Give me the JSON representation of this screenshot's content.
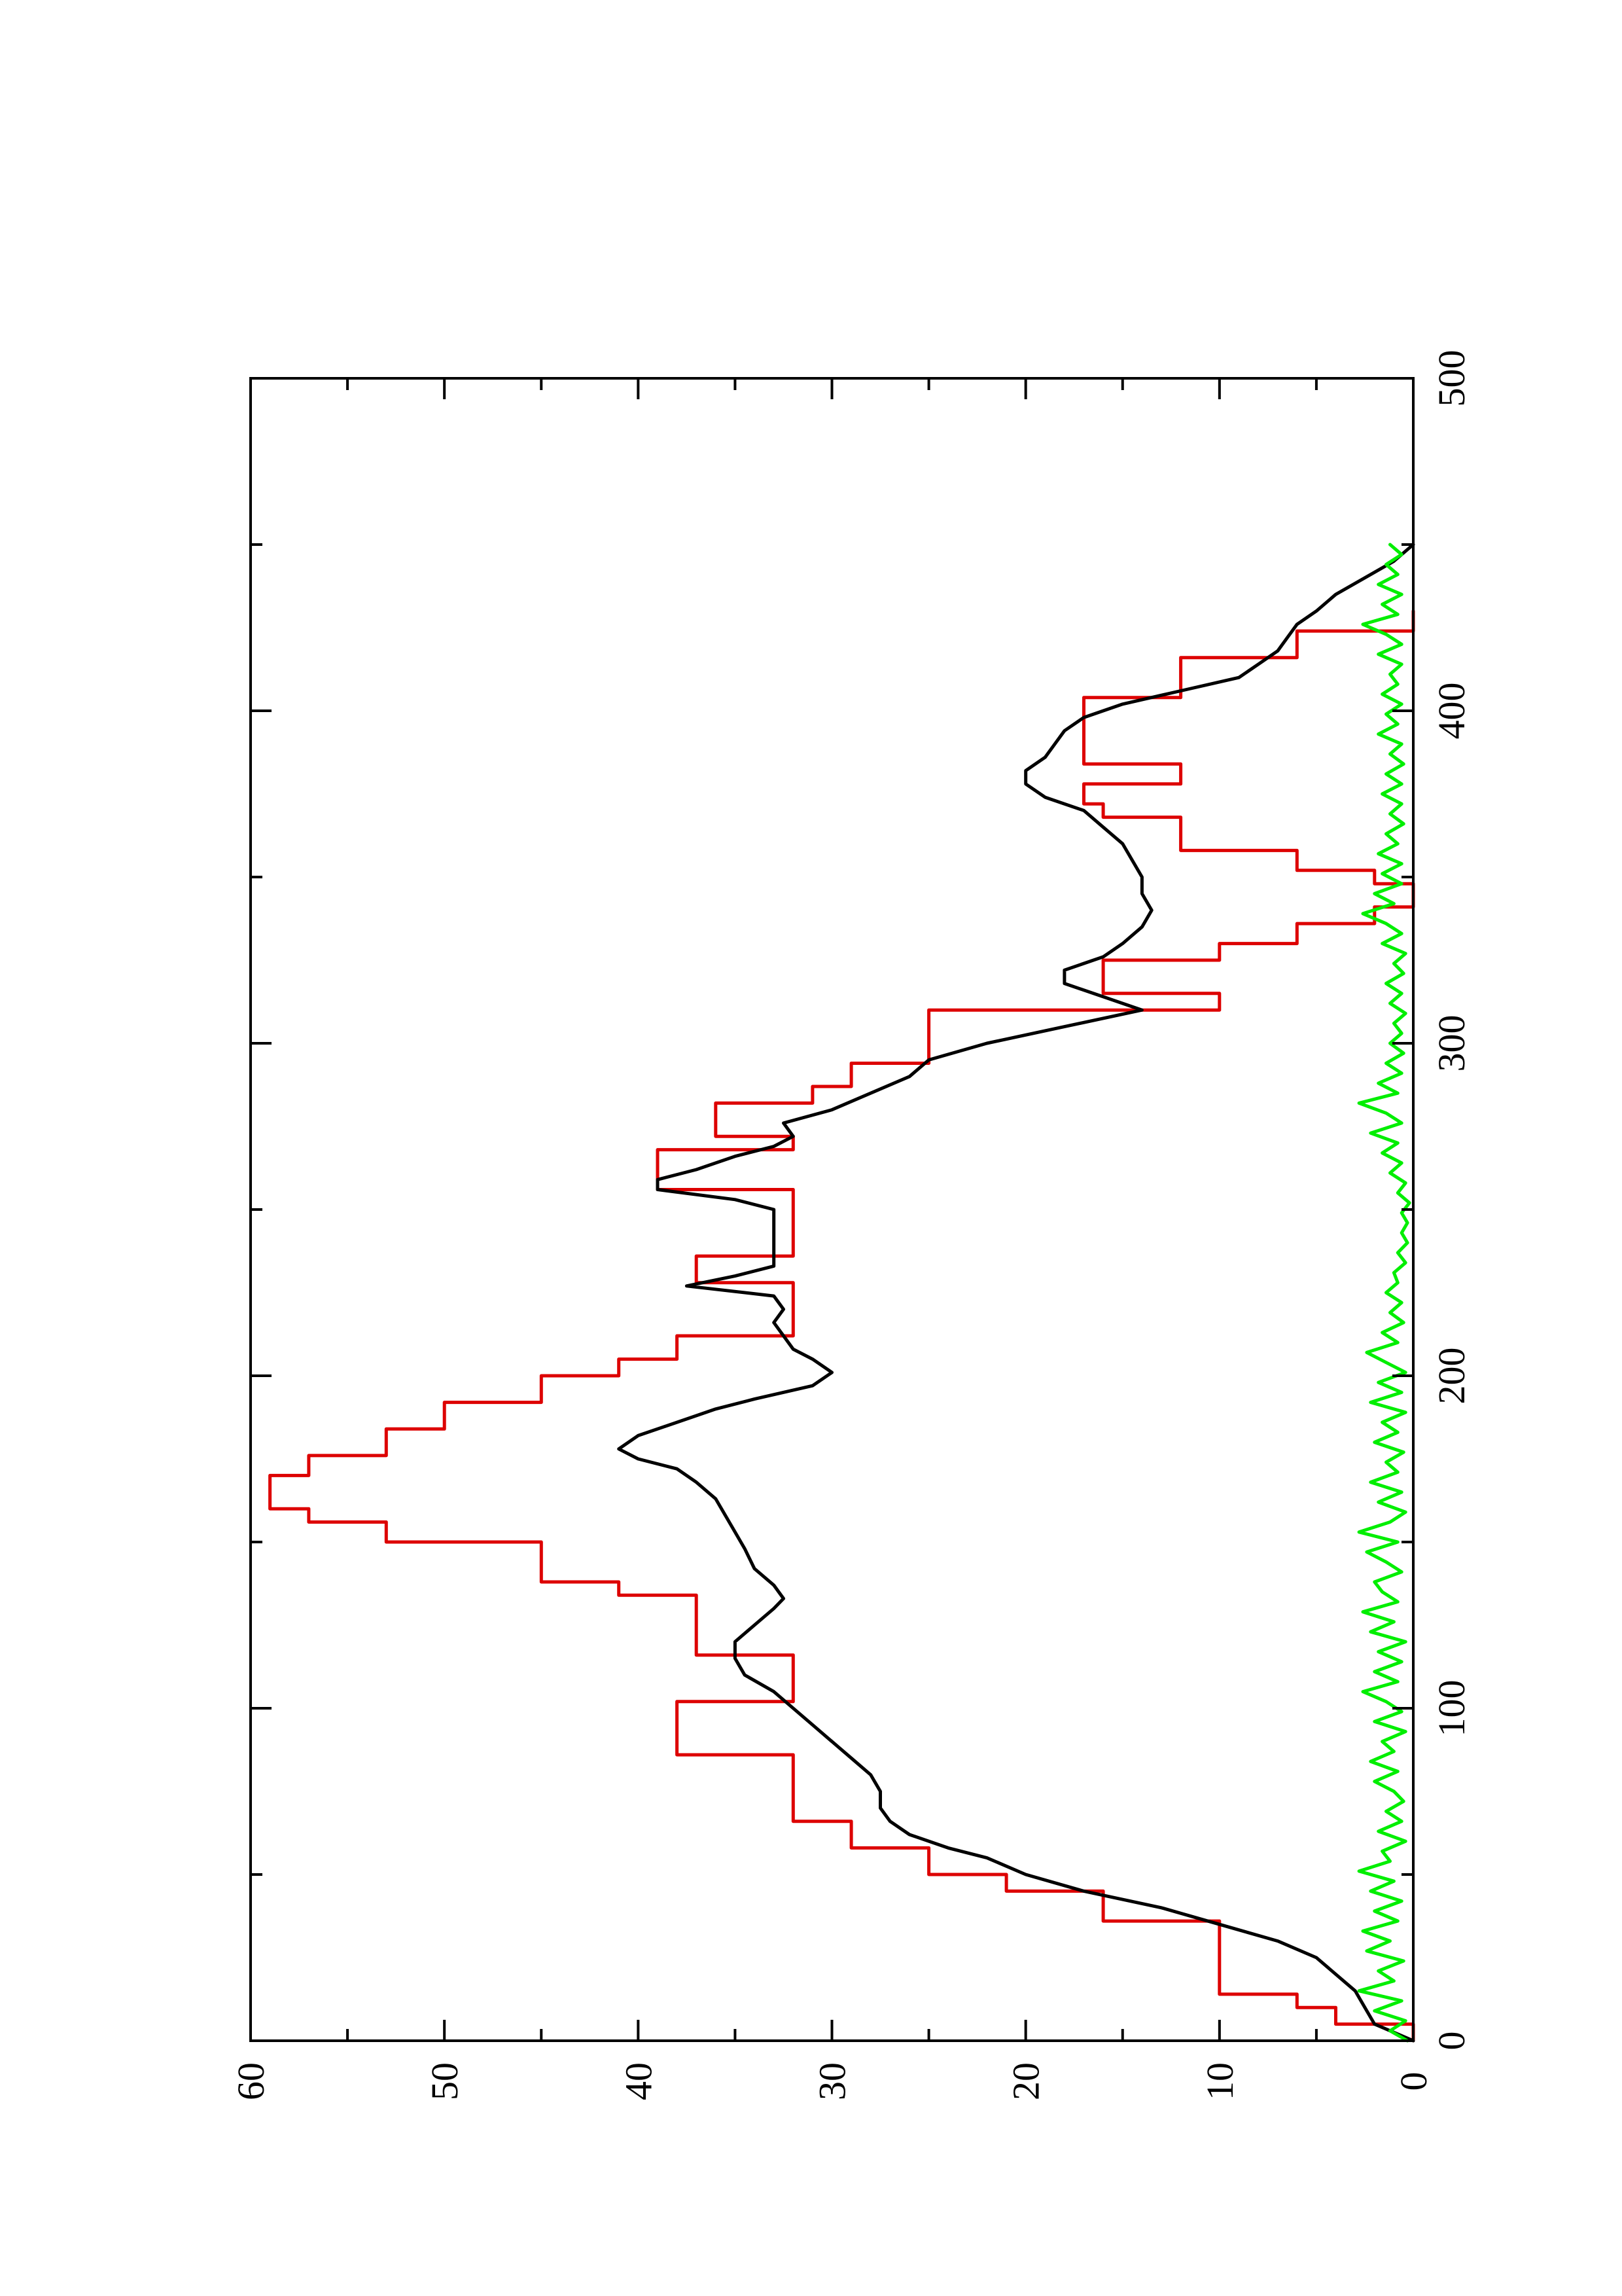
{
  "chart_data": {
    "type": "line",
    "orientation": "rotated-90-ccw",
    "title": "",
    "xlabel": "",
    "ylabel": "",
    "xlim": [
      0,
      500
    ],
    "ylim": [
      0,
      60
    ],
    "x_ticks": [
      0,
      100,
      200,
      300,
      400,
      500
    ],
    "x_minor_ticks": [
      50,
      150,
      250,
      350,
      450
    ],
    "y_ticks": [
      0,
      10,
      20,
      30,
      40,
      50,
      60
    ],
    "y_minor_ticks": [
      5,
      15,
      25,
      35,
      45,
      55
    ],
    "grid": false,
    "legend": "none",
    "series": [
      {
        "color": "#dd0000",
        "style": "step",
        "points": [
          [
            0,
            0
          ],
          [
            5,
            4
          ],
          [
            10,
            6
          ],
          [
            14,
            10
          ],
          [
            33,
            10
          ],
          [
            36,
            16
          ],
          [
            45,
            21
          ],
          [
            50,
            25
          ],
          [
            58,
            29
          ],
          [
            66,
            32
          ],
          [
            82,
            32
          ],
          [
            86,
            38
          ],
          [
            98,
            38
          ],
          [
            102,
            32
          ],
          [
            112,
            32
          ],
          [
            116,
            37
          ],
          [
            128,
            37
          ],
          [
            134,
            41
          ],
          [
            138,
            45
          ],
          [
            150,
            53
          ],
          [
            156,
            57
          ],
          [
            160,
            59
          ],
          [
            166,
            59
          ],
          [
            170,
            57
          ],
          [
            176,
            53
          ],
          [
            184,
            50
          ],
          [
            192,
            45
          ],
          [
            200,
            41
          ],
          [
            205,
            38
          ],
          [
            212,
            32
          ],
          [
            224,
            32
          ],
          [
            228,
            37
          ],
          [
            236,
            32
          ],
          [
            252,
            32
          ],
          [
            256,
            39
          ],
          [
            268,
            32
          ],
          [
            270,
            32
          ],
          [
            272,
            36
          ],
          [
            279,
            36
          ],
          [
            282,
            31
          ],
          [
            287,
            29
          ],
          [
            294,
            25
          ],
          [
            298,
            25
          ],
          [
            310,
            10
          ],
          [
            315,
            16
          ],
          [
            320,
            16
          ],
          [
            325,
            10
          ],
          [
            330,
            6
          ],
          [
            336,
            2
          ],
          [
            341,
            0
          ],
          [
            345,
            0
          ],
          [
            348,
            2
          ],
          [
            352,
            6
          ],
          [
            358,
            12
          ],
          [
            362,
            12
          ],
          [
            368,
            16
          ],
          [
            372,
            17
          ],
          [
            378,
            12
          ],
          [
            384,
            17
          ],
          [
            400,
            17
          ],
          [
            404,
            12
          ],
          [
            408,
            12
          ],
          [
            416,
            6
          ],
          [
            420,
            6
          ],
          [
            424,
            0
          ],
          [
            430,
            0
          ]
        ]
      },
      {
        "color": "#000000",
        "style": "line",
        "points": [
          [
            0,
            0
          ],
          [
            5,
            2
          ],
          [
            10,
            2.5
          ],
          [
            15,
            3
          ],
          [
            20,
            4
          ],
          [
            25,
            5
          ],
          [
            30,
            7
          ],
          [
            35,
            10
          ],
          [
            40,
            13
          ],
          [
            45,
            17
          ],
          [
            50,
            20
          ],
          [
            55,
            22
          ],
          [
            58,
            24
          ],
          [
            62,
            26
          ],
          [
            66,
            27
          ],
          [
            70,
            27.5
          ],
          [
            75,
            27.5
          ],
          [
            80,
            28
          ],
          [
            85,
            29
          ],
          [
            90,
            30
          ],
          [
            95,
            31
          ],
          [
            100,
            32
          ],
          [
            105,
            33
          ],
          [
            110,
            34.5
          ],
          [
            115,
            35
          ],
          [
            120,
            35
          ],
          [
            125,
            34
          ],
          [
            130,
            33
          ],
          [
            133,
            32.5
          ],
          [
            137,
            33
          ],
          [
            142,
            34
          ],
          [
            148,
            34.5
          ],
          [
            153,
            35
          ],
          [
            158,
            35.5
          ],
          [
            163,
            36
          ],
          [
            168,
            37
          ],
          [
            172,
            38
          ],
          [
            175,
            40
          ],
          [
            178,
            41
          ],
          [
            182,
            40
          ],
          [
            186,
            38
          ],
          [
            190,
            36
          ],
          [
            193,
            34
          ],
          [
            197,
            31
          ],
          [
            201,
            30
          ],
          [
            205,
            31
          ],
          [
            208,
            32
          ],
          [
            212,
            32.5
          ],
          [
            216,
            33
          ],
          [
            220,
            32.5
          ],
          [
            224,
            33
          ],
          [
            227,
            37.5
          ],
          [
            230,
            35
          ],
          [
            233,
            33
          ],
          [
            238,
            33
          ],
          [
            245,
            33
          ],
          [
            250,
            33
          ],
          [
            253,
            35
          ],
          [
            256,
            39
          ],
          [
            259,
            39
          ],
          [
            262,
            37
          ],
          [
            266,
            35
          ],
          [
            269,
            33
          ],
          [
            272,
            32
          ],
          [
            276,
            32.5
          ],
          [
            280,
            30
          ],
          [
            285,
            28
          ],
          [
            290,
            26
          ],
          [
            295,
            25
          ],
          [
            300,
            22
          ],
          [
            305,
            18
          ],
          [
            310,
            14
          ],
          [
            314,
            16
          ],
          [
            318,
            18
          ],
          [
            322,
            18
          ],
          [
            326,
            16
          ],
          [
            330,
            15
          ],
          [
            335,
            14
          ],
          [
            340,
            13.5
          ],
          [
            345,
            14
          ],
          [
            350,
            14
          ],
          [
            355,
            14.5
          ],
          [
            360,
            15
          ],
          [
            365,
            16
          ],
          [
            370,
            17
          ],
          [
            374,
            19
          ],
          [
            378,
            20
          ],
          [
            382,
            20
          ],
          [
            386,
            19
          ],
          [
            390,
            18.5
          ],
          [
            394,
            18
          ],
          [
            398,
            17
          ],
          [
            402,
            15
          ],
          [
            406,
            12
          ],
          [
            410,
            9
          ],
          [
            414,
            8
          ],
          [
            418,
            7
          ],
          [
            422,
            6.5
          ],
          [
            426,
            6
          ],
          [
            430,
            5
          ],
          [
            435,
            4
          ],
          [
            440,
            2.5
          ],
          [
            445,
            1
          ],
          [
            450,
            0
          ]
        ]
      },
      {
        "color": "#00ee00",
        "style": "line",
        "points": [
          [
            0,
            0.3
          ],
          [
            3,
            1.2
          ],
          [
            6,
            0.4
          ],
          [
            9,
            2.0
          ],
          [
            12,
            0.6
          ],
          [
            15,
            2.8
          ],
          [
            18,
            1.0
          ],
          [
            21,
            1.8
          ],
          [
            24,
            0.5
          ],
          [
            27,
            2.4
          ],
          [
            30,
            1.2
          ],
          [
            33,
            2.6
          ],
          [
            36,
            0.8
          ],
          [
            39,
            2.0
          ],
          [
            42,
            0.6
          ],
          [
            45,
            2.2
          ],
          [
            48,
            1.0
          ],
          [
            51,
            2.8
          ],
          [
            54,
            1.2
          ],
          [
            57,
            1.6
          ],
          [
            60,
            0.4
          ],
          [
            63,
            1.8
          ],
          [
            66,
            0.6
          ],
          [
            69,
            1.4
          ],
          [
            72,
            0.5
          ],
          [
            75,
            1.0
          ],
          [
            78,
            2.0
          ],
          [
            81,
            0.8
          ],
          [
            84,
            2.2
          ],
          [
            87,
            1.0
          ],
          [
            90,
            1.6
          ],
          [
            93,
            0.4
          ],
          [
            96,
            2.0
          ],
          [
            99,
            0.6
          ],
          [
            102,
            1.4
          ],
          [
            105,
            2.6
          ],
          [
            108,
            0.8
          ],
          [
            111,
            2.0
          ],
          [
            114,
            0.6
          ],
          [
            117,
            1.8
          ],
          [
            120,
            0.4
          ],
          [
            123,
            2.2
          ],
          [
            126,
            1.0
          ],
          [
            129,
            2.6
          ],
          [
            132,
            0.8
          ],
          [
            135,
            1.6
          ],
          [
            138,
            2.0
          ],
          [
            141,
            0.6
          ],
          [
            144,
            1.4
          ],
          [
            147,
            2.4
          ],
          [
            150,
            0.8
          ],
          [
            153,
            2.8
          ],
          [
            156,
            1.2
          ],
          [
            159,
            0.4
          ],
          [
            162,
            1.8
          ],
          [
            165,
            0.6
          ],
          [
            168,
            2.2
          ],
          [
            171,
            0.8
          ],
          [
            174,
            1.4
          ],
          [
            177,
            0.5
          ],
          [
            180,
            2.0
          ],
          [
            183,
            0.8
          ],
          [
            186,
            1.6
          ],
          [
            189,
            0.4
          ],
          [
            192,
            2.2
          ],
          [
            195,
            0.6
          ],
          [
            198,
            1.8
          ],
          [
            201,
            0.4
          ],
          [
            204,
            1.4
          ],
          [
            207,
            2.4
          ],
          [
            210,
            0.8
          ],
          [
            213,
            1.6
          ],
          [
            216,
            0.5
          ],
          [
            219,
            1.2
          ],
          [
            222,
            0.6
          ],
          [
            225,
            1.4
          ],
          [
            228,
            0.8
          ],
          [
            231,
            1.0
          ],
          [
            234,
            0.4
          ],
          [
            237,
            0.8
          ],
          [
            240,
            0.3
          ],
          [
            243,
            0.6
          ],
          [
            246,
            0.3
          ],
          [
            249,
            0.6
          ],
          [
            252,
            0.2
          ],
          [
            255,
            0.8
          ],
          [
            258,
            0.4
          ],
          [
            261,
            1.2
          ],
          [
            264,
            0.6
          ],
          [
            267,
            1.6
          ],
          [
            270,
            0.8
          ],
          [
            273,
            2.2
          ],
          [
            276,
            0.6
          ],
          [
            279,
            1.4
          ],
          [
            282,
            2.8
          ],
          [
            285,
            0.8
          ],
          [
            288,
            1.8
          ],
          [
            291,
            0.6
          ],
          [
            294,
            1.4
          ],
          [
            297,
            0.5
          ],
          [
            300,
            1.2
          ],
          [
            303,
            0.6
          ],
          [
            306,
            1.0
          ],
          [
            309,
            0.4
          ],
          [
            312,
            1.2
          ],
          [
            315,
            0.6
          ],
          [
            318,
            1.4
          ],
          [
            321,
            0.5
          ],
          [
            324,
            1.0
          ],
          [
            327,
            0.4
          ],
          [
            330,
            1.6
          ],
          [
            333,
            0.6
          ],
          [
            336,
            1.4
          ],
          [
            339,
            2.6
          ],
          [
            342,
            1.0
          ],
          [
            345,
            2.0
          ],
          [
            348,
            0.6
          ],
          [
            351,
            1.6
          ],
          [
            354,
            0.6
          ],
          [
            357,
            1.8
          ],
          [
            360,
            0.8
          ],
          [
            363,
            1.4
          ],
          [
            366,
            0.5
          ],
          [
            369,
            1.2
          ],
          [
            372,
            0.6
          ],
          [
            375,
            1.6
          ],
          [
            378,
            0.6
          ],
          [
            381,
            1.4
          ],
          [
            384,
            0.5
          ],
          [
            387,
            1.2
          ],
          [
            390,
            0.6
          ],
          [
            393,
            1.8
          ],
          [
            396,
            0.8
          ],
          [
            399,
            1.4
          ],
          [
            402,
            0.6
          ],
          [
            405,
            1.6
          ],
          [
            408,
            0.8
          ],
          [
            411,
            1.2
          ],
          [
            414,
            0.6
          ],
          [
            417,
            1.8
          ],
          [
            420,
            0.6
          ],
          [
            423,
            1.4
          ],
          [
            426,
            2.6
          ],
          [
            429,
            0.8
          ],
          [
            432,
            1.6
          ],
          [
            435,
            0.6
          ],
          [
            438,
            1.8
          ],
          [
            441,
            0.8
          ],
          [
            444,
            1.4
          ],
          [
            447,
            0.6
          ],
          [
            450,
            1.2
          ]
        ]
      }
    ]
  }
}
